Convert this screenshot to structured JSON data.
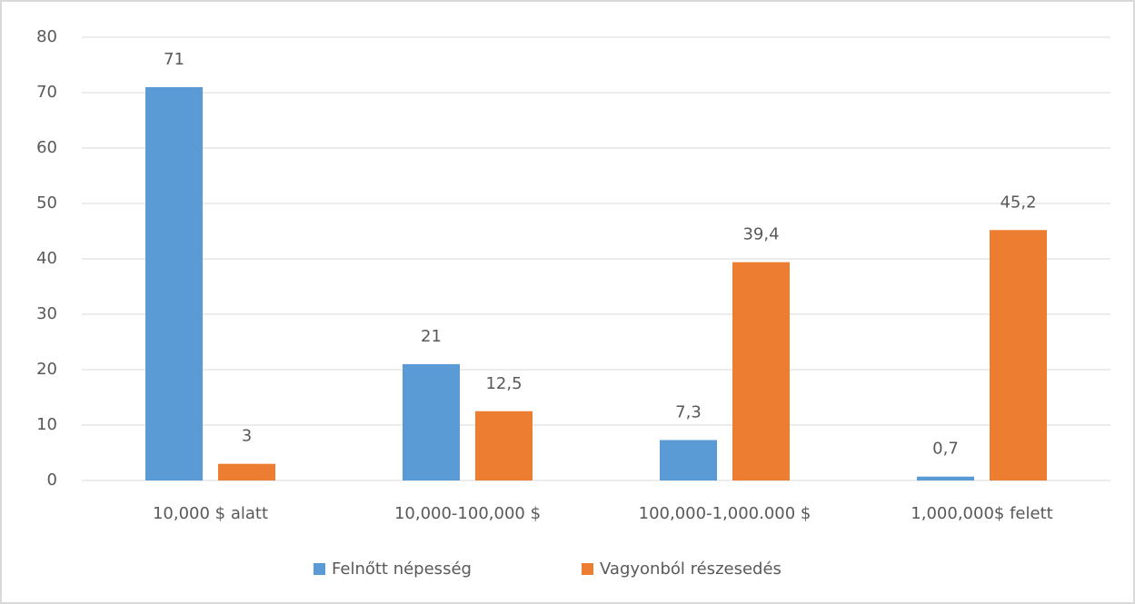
{
  "chart_data": {
    "type": "bar",
    "categories": [
      "10,000 $ alatt",
      "10,000-100,000 $",
      "100,000-1,000.000 $",
      "1,000,000$ felett"
    ],
    "series": [
      {
        "name": "Felnőtt népesség",
        "color": "#5b9bd5",
        "values": [
          71,
          21,
          7.3,
          0.7
        ],
        "value_labels": [
          "71",
          "21",
          "7,3",
          "0,7"
        ]
      },
      {
        "name": "Vagyonból részesedés",
        "color": "#ed7d31",
        "values": [
          3,
          12.5,
          39.4,
          45.2
        ],
        "value_labels": [
          "3",
          "12,5",
          "39,4",
          "45,2"
        ]
      }
    ],
    "ylim": [
      0,
      80
    ],
    "yticks": [
      0,
      10,
      20,
      30,
      40,
      50,
      60,
      70,
      80
    ],
    "grid": true,
    "legend": "bottom"
  }
}
